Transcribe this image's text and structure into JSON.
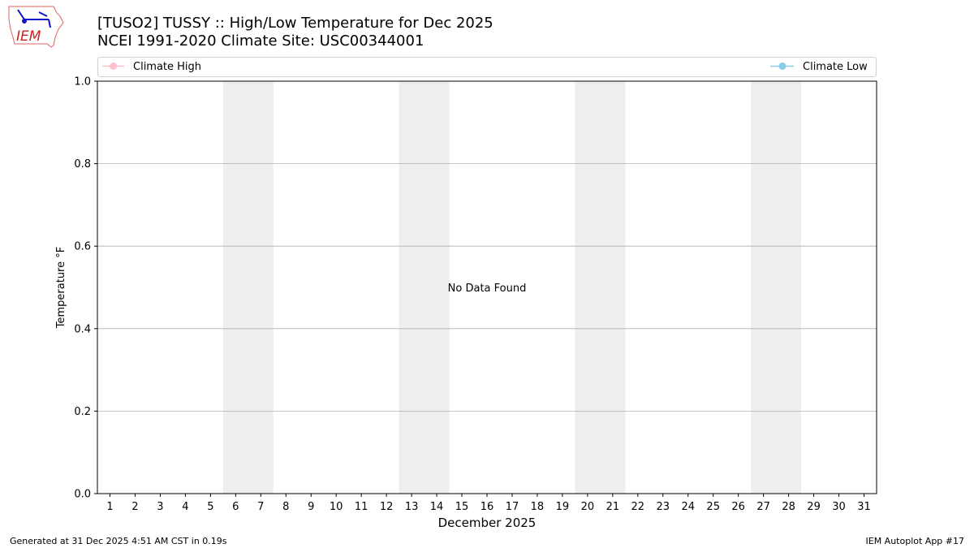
{
  "header": {
    "title_line1": "[TUSO2] TUSSY :: High/Low Temperature for Dec 2025",
    "title_line2": "NCEI 1991-2020 Climate Site: USC00344001",
    "logo_text": "IEM"
  },
  "footer": {
    "left": "Generated at 31 Dec 2025 4:51 AM CST in 0.19s",
    "right": "IEM Autoplot App #17"
  },
  "chart_data": {
    "type": "line",
    "title": "[TUSO2] TUSSY :: High/Low Temperature for Dec 2025",
    "subtitle": "NCEI 1991-2020 Climate Site: USC00344001",
    "xlabel": "December 2025",
    "ylabel": "Temperature °F",
    "xlim": [
      0.5,
      31.5
    ],
    "ylim": [
      0.0,
      1.0
    ],
    "x_ticks": [
      1,
      2,
      3,
      4,
      5,
      6,
      7,
      8,
      9,
      10,
      11,
      12,
      13,
      14,
      15,
      16,
      17,
      18,
      19,
      20,
      21,
      22,
      23,
      24,
      25,
      26,
      27,
      28,
      29,
      30,
      31
    ],
    "y_ticks": [
      "0.0",
      "0.2",
      "0.4",
      "0.6",
      "0.8",
      "1.0"
    ],
    "y_tick_values": [
      0.0,
      0.2,
      0.4,
      0.6,
      0.8,
      1.0
    ],
    "grid": "horizontal",
    "weekend_shading": [
      [
        5.5,
        7.5
      ],
      [
        12.5,
        14.5
      ],
      [
        19.5,
        21.5
      ],
      [
        26.5,
        28.5
      ]
    ],
    "annotation": "No Data Found",
    "annotation_at": [
      16,
      0.5
    ],
    "legend_placement": "top, above plot",
    "series": [
      {
        "name": "Climate High",
        "color": "#ffc0cb",
        "values": []
      },
      {
        "name": "Climate Low",
        "color": "#87ceeb",
        "values": []
      }
    ],
    "colors": {
      "shading": "#eeeeee",
      "grid": "#b0b0b0"
    }
  }
}
